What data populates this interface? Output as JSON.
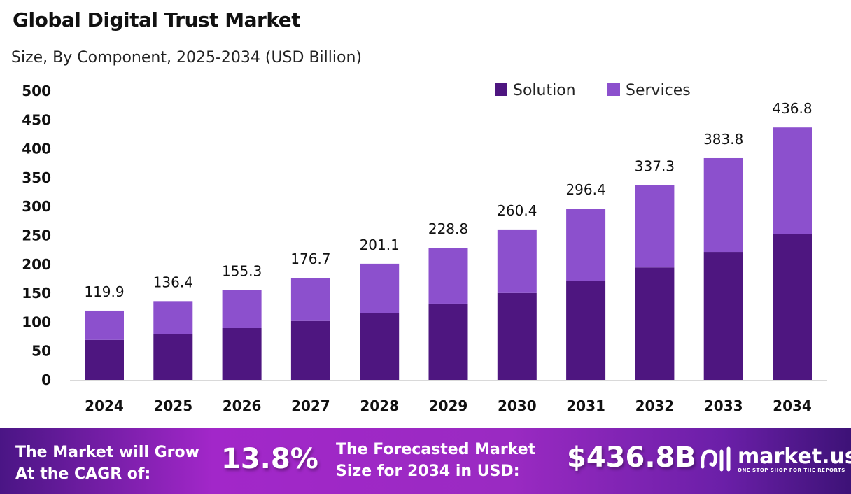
{
  "chart_data": {
    "type": "bar",
    "stacked": true,
    "title": "Global Digital Trust Market",
    "subtitle": "Size, By Component, 2025-2034 (USD Billion)",
    "xlabel": "",
    "ylabel": "",
    "ylim": [
      0,
      500
    ],
    "yticks": [
      "0",
      "50",
      "100",
      "150",
      "200",
      "250",
      "300",
      "350",
      "400",
      "450",
      "500"
    ],
    "categories": [
      "2024",
      "2025",
      "2026",
      "2027",
      "2028",
      "2029",
      "2030",
      "2031",
      "2032",
      "2033",
      "2034"
    ],
    "series": [
      {
        "name": "Solution",
        "color": "#4e1680",
        "values": [
          69.2,
          78.7,
          89.6,
          102.0,
          116.0,
          132.0,
          150.3,
          171.0,
          194.6,
          221.5,
          252.0
        ]
      },
      {
        "name": "Services",
        "color": "#8c50cd",
        "values": [
          50.7,
          57.7,
          65.7,
          74.7,
          85.1,
          96.8,
          110.1,
          125.4,
          142.7,
          162.3,
          184.8
        ]
      }
    ],
    "totals": [
      "119.9",
      "136.4",
      "155.3",
      "176.7",
      "201.1",
      "228.8",
      "260.4",
      "296.4",
      "337.3",
      "383.8",
      "436.8"
    ],
    "legend": "top-right",
    "grid": false
  },
  "footer": {
    "cagr_label_1": "The Market will Grow",
    "cagr_label_2": "At the CAGR of:",
    "cagr_value": "13.8%",
    "forecast_label_1": "The Forecasted Market",
    "forecast_label_2": "Size for 2034 in USD:",
    "forecast_value": "$436.8B",
    "logo_name": "market.us",
    "logo_tagline": "ONE STOP SHOP FOR THE REPORTS"
  }
}
